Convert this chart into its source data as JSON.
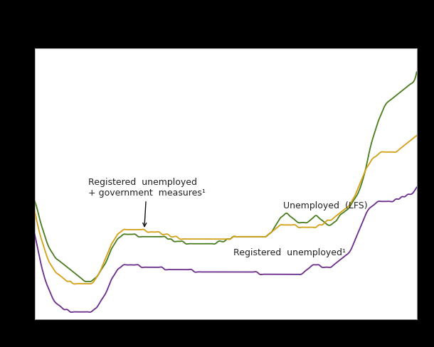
{
  "background_color": "#ffffff",
  "outer_bg": "#000000",
  "grid_color": "#c8c8c8",
  "line_colors": {
    "lfs": "#4a7c1f",
    "gov": "#d4a017",
    "reg": "#6b2d8b"
  },
  "annotation_gov_text": "Registered  unemployed\n+ government  measures¹",
  "annotation_lfs_text": "Unemployed  (LFS)",
  "annotation_reg_text": "Registered  unemployed¹",
  "fontsize": 9.0,
  "lfs_values": [
    72,
    68,
    63,
    59,
    55,
    52,
    50,
    48,
    47,
    46,
    45,
    44,
    43,
    42,
    41,
    40,
    39,
    38,
    38,
    38,
    39,
    40,
    42,
    44,
    46,
    49,
    52,
    54,
    56,
    57,
    58,
    58,
    58,
    58,
    58,
    57,
    57,
    57,
    57,
    57,
    57,
    57,
    57,
    57,
    57,
    56,
    56,
    55,
    55,
    55,
    55,
    54,
    54,
    54,
    54,
    54,
    54,
    54,
    54,
    54,
    54,
    54,
    55,
    55,
    55,
    56,
    56,
    57,
    57,
    57,
    57,
    57,
    57,
    57,
    57,
    57,
    57,
    57,
    57,
    58,
    59,
    61,
    63,
    65,
    66,
    67,
    66,
    65,
    64,
    63,
    63,
    63,
    63,
    64,
    65,
    66,
    65,
    64,
    63,
    62,
    62,
    63,
    64,
    66,
    67,
    68,
    69,
    71,
    73,
    75,
    78,
    82,
    87,
    93,
    98,
    102,
    106,
    109,
    112,
    114,
    115,
    116,
    117,
    118,
    119,
    120,
    121,
    122,
    123,
    127
  ],
  "gov_values": [
    68,
    62,
    57,
    53,
    49,
    46,
    44,
    42,
    41,
    40,
    39,
    38,
    38,
    37,
    37,
    37,
    37,
    37,
    37,
    37,
    38,
    40,
    42,
    45,
    48,
    51,
    54,
    56,
    58,
    59,
    60,
    60,
    60,
    60,
    60,
    60,
    60,
    60,
    59,
    59,
    59,
    59,
    59,
    58,
    58,
    58,
    57,
    57,
    57,
    56,
    56,
    56,
    56,
    56,
    56,
    56,
    56,
    56,
    56,
    56,
    56,
    56,
    56,
    56,
    56,
    56,
    56,
    57,
    57,
    57,
    57,
    57,
    57,
    57,
    57,
    57,
    57,
    57,
    57,
    58,
    59,
    60,
    61,
    62,
    62,
    62,
    62,
    62,
    62,
    61,
    61,
    61,
    61,
    61,
    61,
    61,
    62,
    62,
    63,
    64,
    64,
    65,
    66,
    67,
    68,
    69,
    70,
    72,
    74,
    77,
    80,
    83,
    86,
    88,
    90,
    91,
    92,
    93,
    93,
    93,
    93,
    93,
    93,
    94,
    95,
    96,
    97,
    98,
    99,
    100
  ],
  "reg_values": [
    58,
    52,
    46,
    41,
    37,
    34,
    31,
    29,
    28,
    27,
    26,
    26,
    25,
    25,
    25,
    25,
    25,
    25,
    25,
    25,
    26,
    27,
    29,
    31,
    33,
    36,
    39,
    41,
    43,
    44,
    45,
    45,
    45,
    45,
    45,
    45,
    44,
    44,
    44,
    44,
    44,
    44,
    44,
    44,
    43,
    43,
    43,
    43,
    43,
    43,
    43,
    43,
    43,
    43,
    42,
    42,
    42,
    42,
    42,
    42,
    42,
    42,
    42,
    42,
    42,
    42,
    42,
    42,
    42,
    42,
    42,
    42,
    42,
    42,
    42,
    42,
    41,
    41,
    41,
    41,
    41,
    41,
    41,
    41,
    41,
    41,
    41,
    41,
    41,
    41,
    41,
    42,
    43,
    44,
    45,
    45,
    45,
    44,
    44,
    44,
    44,
    45,
    46,
    47,
    48,
    49,
    50,
    52,
    55,
    58,
    61,
    64,
    67,
    69,
    70,
    71,
    72,
    72,
    72,
    72,
    72,
    72,
    73,
    73,
    74,
    74,
    75,
    75,
    76,
    78
  ]
}
